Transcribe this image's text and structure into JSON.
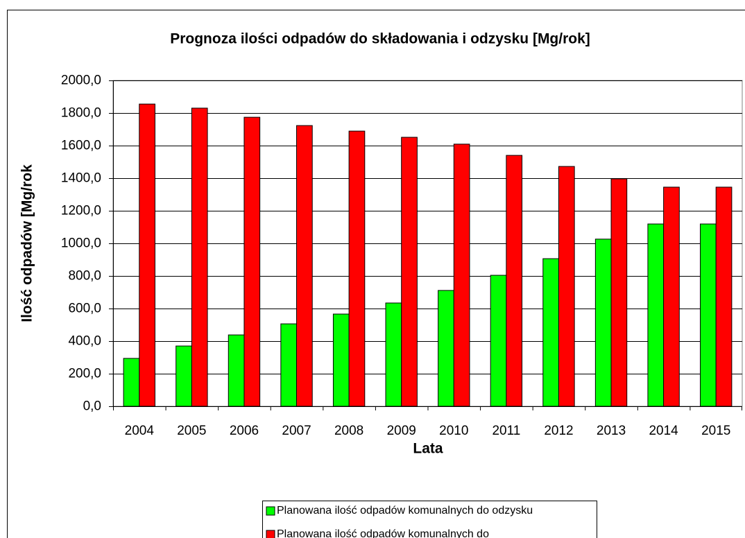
{
  "chart_data": {
    "type": "bar",
    "title": "Prognoza ilości odpadów do składowania i odzysku [Mg/rok]",
    "x_label": "Lata",
    "y_label": "Ilość odpadów [Mg/rok",
    "categories": [
      "2004",
      "2005",
      "2006",
      "2007",
      "2008",
      "2009",
      "2010",
      "2011",
      "2012",
      "2013",
      "2014",
      "2015"
    ],
    "series": [
      {
        "name": "Planowana ilość odpadów komunalnych do odzysku",
        "color": "#00ff00",
        "values": [
          294,
          370,
          438,
          506,
          566,
          634,
          711,
          804,
          906,
          1026,
          1119,
          1119
        ]
      },
      {
        "name": "Planowana ilość odpadów komunalnych do",
        "color": "#ff0000",
        "values": [
          1855,
          1830,
          1774,
          1723,
          1689,
          1651,
          1609,
          1540,
          1472,
          1396,
          1345,
          1345
        ]
      }
    ],
    "ylim": [
      0,
      2000
    ],
    "yticks": [
      {
        "value": 0,
        "label": "0,0"
      },
      {
        "value": 200,
        "label": "200,0"
      },
      {
        "value": 400,
        "label": "400,0"
      },
      {
        "value": 600,
        "label": "600,0"
      },
      {
        "value": 800,
        "label": "800,0"
      },
      {
        "value": 1000,
        "label": "1000,0"
      },
      {
        "value": 1200,
        "label": "1200,0"
      },
      {
        "value": 1400,
        "label": "1400,0"
      },
      {
        "value": 1600,
        "label": "1600,0"
      },
      {
        "value": 1800,
        "label": "1800,0"
      },
      {
        "value": 2000,
        "label": "2000,0"
      }
    ],
    "grid": true,
    "legend": "bottom"
  }
}
